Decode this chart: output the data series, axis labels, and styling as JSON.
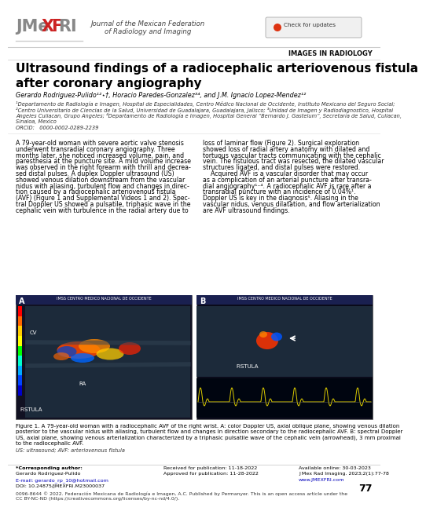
{
  "title": "Ultrasound findings of a radiocephalic arteriovenous fistula\nafter coronary angiography",
  "authors": "Gerardo Rodriguez-Pulido¹²⋆†, Horacio Paredes-Gonzalez³⁴, and J.M. Ignacio Lopez-Mendez¹²",
  "affiliations_line1": "¹Departamento de Radiología e Imagen, Hospital de Especialidades, Centro Médico Nacional de Occidente, Instituto Mexicano del Seguro Social;",
  "affiliations_line2": "²Centro Universitario de Ciencias de la Salud, Universidad de Guadalajara, Guadalajara, Jalisco; ³Unidad de Imagen y Radiodiagnostico, Hospital",
  "affiliations_line3": "Angeles Culiacan, Grupo Angeles; ⁴Departamento de Radiología e Imagen, Hospital General “Bernardo J. Gastelum”, Secretaría de Salud, Culiacan,",
  "affiliations_line4": "Sinaloa, Mexico",
  "orcid": "ORCID:  0000-0002-0289-2239",
  "section_label": "IMAGES IN RADIOLOGY",
  "journal_title_line1": "Journal of the Mexican Federation",
  "journal_title_line2": "of Radiology and Imaging",
  "body_col1_lines": [
    "A 79-year-old woman with severe aortic valve stenosis",
    "underwent transradial coronary angiography. Three",
    "months later, she noticed increased volume, pain, and",
    "paresthesia at the puncture site. A mild volume increase",
    "was observed in the right forearm with thrill and decrea-",
    "sed distal pulses. A duplex Doppler ultrasound (US)",
    "showed venous dilation downstream from the vascular",
    "nidus with aliasing, turbulent flow and changes in direc-",
    "tion caused by a radiocephalic arteriovenous fistula",
    "(AVF) (Figure 1 and Supplemental Videos 1 and 2). Spec-",
    "tral Doppler US showed a pulsatile, triphasic wave in the",
    "cephalic vein with turbulence in the radial artery due to"
  ],
  "body_col2_lines": [
    "loss of laminar flow (Figure 2). Surgical exploration",
    "showed loss of radial artery anatomy with dilated and",
    "tortuous vascular tracts communicating with the cephalic",
    "vein. The fistulous tract was resected, the dilated vascular",
    "structures ligated, and distal pulses were restored.",
    "    Acquired AVF is a vascular disorder that may occur",
    "as a complication of an arterial puncture after transra-",
    "dial angiography¹⁻⁴. A radiocephalic AVF is rare after a",
    "transradial puncture with an incidence of 0.04%¹.",
    "Doppler US is key in the diagnosis⁵. Aliasing in the",
    "vascular nidus, venous dilatation, and flow arterialization",
    "are AVF ultrasound findings."
  ],
  "figure_caption_lines": [
    "Figure 1. A 79-year-old woman with a radiocephalic AVF of the right wrist. A: color Doppler US, axial oblique plane, showing venous dilation",
    "posterior to the vascular nidus with aliasing, turbulent flow and changes in direction secondary to the radiocephalic AVF. B: spectral Doppler",
    "US, axial plane, showing venous arterialization characterized by a triphasic pulsatile wave of the cephalic vein (arrowhead), 3 mm proximal",
    "to the radiocephalic AVF."
  ],
  "us_abbrev": "US: ultrasound; AVF: arteriovenous fistula",
  "footer_col1_label": "*Corresponding author:",
  "footer_col1_name": "Gerardo Rodriguez-Pulido",
  "footer_col1_email": "E-mail: gerardo_rp_10@hotmail.com",
  "footer_col1_doi": "DOI: 10.24875/JMEXFRI.M23000037",
  "footer_col1_copy": "0096-8644 © 2022. Federación Mexicana de Radiología e Imagen, A.C. Published by Permanyer. This is an open access article under the",
  "footer_col1_copy2": "CC BY-NC-ND (https://creativecommons.org/licenses/by-nc-nd/4.0/).",
  "footer_col2_received": "Received for publication: 11-18-2022",
  "footer_col2_approved": "Approved for publication: 11-28-2022",
  "footer_col3_online": "Available online: 30-03-2023",
  "footer_col3_journal": "J Mex Rad Imaging. 2023;2(1):77-78",
  "footer_col3_url": "www.JMEXFRI.com",
  "page_number": "77",
  "bg_color": "#ffffff",
  "text_color": "#000000",
  "light_gray": "#cccccc",
  "dark_gray": "#444444",
  "section_color": "#111111",
  "logo_gray": "#888888",
  "logo_red": "#cc2222"
}
